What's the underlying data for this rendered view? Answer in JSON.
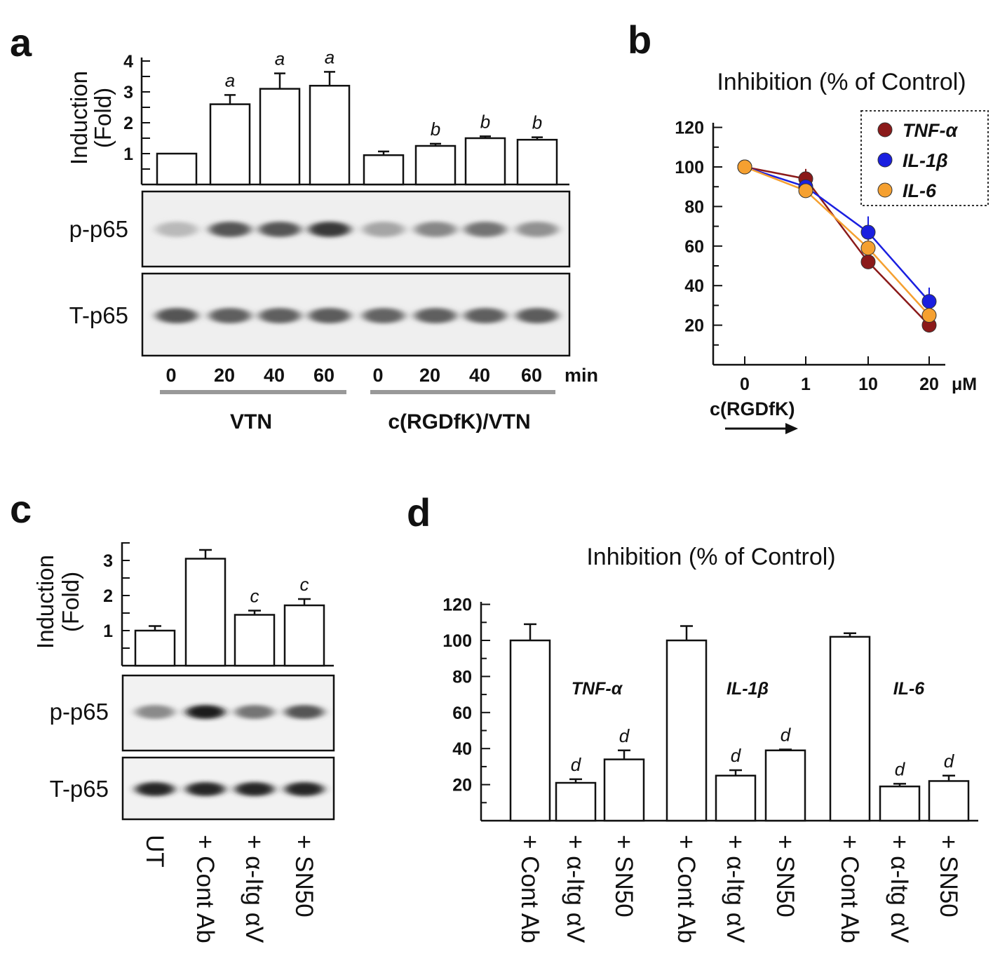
{
  "chart_data": [
    {
      "panel": "a",
      "type": "bar",
      "ylabel": "Induction\n(Fold)",
      "ylim": [
        0,
        4
      ],
      "yticks": [
        1,
        2,
        3,
        4
      ],
      "categories": [
        "0",
        "20",
        "40",
        "60",
        "0",
        "20",
        "40",
        "60"
      ],
      "unit": "min",
      "values": [
        1.0,
        2.6,
        3.1,
        3.2,
        0.95,
        1.25,
        1.5,
        1.45
      ],
      "errors": [
        0,
        0.3,
        0.5,
        0.45,
        0.12,
        0.07,
        0.06,
        0.08
      ],
      "significance": [
        "",
        "a",
        "a",
        "a",
        "",
        "b",
        "b",
        "b"
      ],
      "groups": [
        "VTN",
        "c(RGDfK)/VTN"
      ],
      "blot_labels": [
        "p-p65",
        "T-p65"
      ],
      "p_p65_intensity": [
        0.25,
        0.75,
        0.75,
        0.9,
        0.35,
        0.5,
        0.6,
        0.45
      ],
      "t_p65_intensity": [
        0.75,
        0.7,
        0.7,
        0.72,
        0.68,
        0.7,
        0.7,
        0.72
      ]
    },
    {
      "panel": "b",
      "type": "line",
      "title": "Inhibition (% of Control)",
      "x": [
        "0",
        "1",
        "10",
        "20"
      ],
      "xunit": "μM",
      "xlabel": "c(RGDfK)",
      "ylim": [
        0,
        120
      ],
      "yticks": [
        20,
        40,
        60,
        80,
        100,
        120
      ],
      "legend_position": "top-right",
      "series": [
        {
          "name": "TNF-α",
          "color": "#8b1a1a",
          "values": [
            100,
            94,
            52,
            20
          ],
          "errors": [
            0,
            5,
            3,
            2
          ]
        },
        {
          "name": "IL-1β",
          "color": "#1a1fe0",
          "values": [
            100,
            90,
            67,
            32
          ],
          "errors": [
            0,
            3,
            8,
            7
          ]
        },
        {
          "name": "IL-6",
          "color": "#f5a030",
          "values": [
            100,
            88,
            59,
            25
          ],
          "errors": [
            0,
            3,
            4,
            3
          ]
        }
      ]
    },
    {
      "panel": "c",
      "type": "bar",
      "ylabel": "Induction\n(Fold)",
      "ylim": [
        0,
        3.5
      ],
      "yticks": [
        1,
        2,
        3
      ],
      "categories": [
        "UT",
        "+ Cont Ab",
        "+ α-Itg αV",
        "+ SN50"
      ],
      "values": [
        1.0,
        3.05,
        1.45,
        1.72
      ],
      "errors": [
        0.13,
        0.25,
        0.12,
        0.18
      ],
      "significance": [
        "",
        "",
        "c",
        "c"
      ],
      "blot_labels": [
        "p-p65",
        "T-p65"
      ],
      "p_p65_intensity": [
        0.45,
        0.95,
        0.55,
        0.7
      ],
      "t_p65_intensity": [
        0.92,
        0.92,
        0.92,
        0.92
      ]
    },
    {
      "panel": "d",
      "type": "bar",
      "title": "Inhibition (% of Control)",
      "ylim": [
        0,
        120
      ],
      "yticks": [
        20,
        40,
        60,
        80,
        100,
        120
      ],
      "categories": [
        "+ Cont Ab",
        "+ α-Itg αV",
        "+ SN50",
        "+ Cont Ab",
        "+ α-Itg αV",
        "+ SN50",
        "+ Cont Ab",
        "+ α-Itg αV",
        "+ SN50"
      ],
      "values": [
        100,
        21,
        34,
        100,
        25,
        39,
        102,
        19,
        22
      ],
      "errors": [
        9,
        2,
        5,
        8,
        3,
        0.5,
        2,
        1.5,
        3
      ],
      "significance": [
        "",
        "d",
        "d",
        "",
        "d",
        "d",
        "",
        "d",
        "d"
      ],
      "group_labels": [
        "TNF-α",
        "IL-1β",
        "IL-6"
      ]
    }
  ]
}
